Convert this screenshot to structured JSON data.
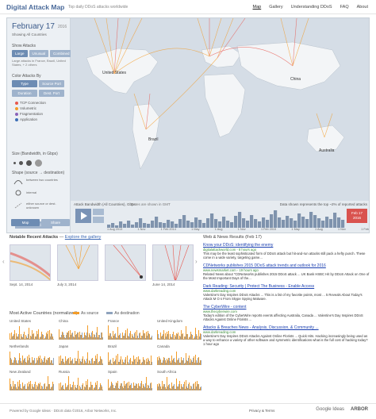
{
  "header": {
    "title": "Digital Attack Map",
    "subtitle": "Top daily DDoS attacks worldwide",
    "nav": [
      "Map",
      "Gallery",
      "Understanding DDoS",
      "FAQ",
      "About"
    ]
  },
  "sidepanel": {
    "date": "February 17",
    "year": "2016",
    "showing": "Showing All Countries",
    "show_attacks_label": "Show Attacks",
    "show_attacks_buttons": [
      "Large",
      "Unusual",
      "Combined"
    ],
    "show_attacks_note": "Large attacks in France, Brazil, United States, + 2 others",
    "color_label": "Color Attacks By",
    "color_buttons_row1": [
      "Type",
      "Source Port"
    ],
    "color_buttons_row2": [
      "Duration",
      "Dest. Port"
    ],
    "color_legend": [
      {
        "label": "TCP Connection",
        "color": "#e8574e"
      },
      {
        "label": "Volumetric",
        "color": "#f39c28"
      },
      {
        "label": "Fragmentation",
        "color": "#8a63b8"
      },
      {
        "label": "Application",
        "color": "#3d6fb6"
      }
    ],
    "size_label": "Size (Bandwidth, in Gbps)",
    "shape_label": "Shape (source → destination)",
    "shapes": [
      "between two countries",
      "internal",
      "either source or dest. unknown"
    ],
    "embed_button": "Get Embed Code",
    "map_button": "Map",
    "share_button": "Share"
  },
  "map": {
    "labels": [
      {
        "name": "United States"
      },
      {
        "name": "Brazil"
      },
      {
        "name": "China"
      },
      {
        "name": "Australia"
      }
    ]
  },
  "timeline": {
    "bandwidth_label": "Attack Bandwidth (All Countries), Gbps",
    "dates_note": "Dates are shown in GMT",
    "data_note": "Data shown represents the top ~2% of reported attacks",
    "badge_date": "Feb 17",
    "badge_year": "2016",
    "axis": [
      "1 Aug 2013",
      "1 Nov",
      "1 Feb 2014",
      "1 May",
      "1 Aug",
      "1 Nov",
      "1 Feb 2015",
      "1 May",
      "1 Aug",
      "1 Nov",
      "1 Feb"
    ],
    "spark": [
      4,
      6,
      3,
      8,
      5,
      9,
      4,
      7,
      12,
      6,
      5,
      9,
      14,
      7,
      6,
      10,
      8,
      5,
      11,
      16,
      9,
      7,
      13,
      10,
      6,
      12,
      18,
      11,
      8,
      14,
      9,
      7,
      15,
      20,
      12,
      9,
      16,
      11,
      8,
      13,
      10,
      17,
      22,
      13,
      10,
      15,
      12,
      9,
      18,
      14,
      11,
      20,
      16,
      12,
      9,
      14,
      11,
      19,
      13,
      10
    ]
  },
  "gallery": {
    "title": "Notable Recent Attacks",
    "link": "Explore the gallery",
    "thumbs": [
      {
        "caption": "Sept. 14, 2014"
      },
      {
        "caption": "July 3, 2014"
      },
      {
        "caption": ""
      },
      {
        "caption": "June 14, 2014"
      }
    ]
  },
  "countries": {
    "title": "Most Active Countries (normalized)",
    "legend_source": "As source",
    "legend_dest": "As destination",
    "source_color": "#f39c28",
    "dest_color": "#8fa3bd",
    "cells": [
      {
        "name": "United States"
      },
      {
        "name": "China"
      },
      {
        "name": "France"
      },
      {
        "name": "United Kingdom"
      },
      {
        "name": "Netherlands"
      },
      {
        "name": "Japan"
      },
      {
        "name": "Brazil"
      },
      {
        "name": "Canada"
      },
      {
        "name": "New Zealand"
      },
      {
        "name": "Russia"
      },
      {
        "name": "Spain"
      },
      {
        "name": "South Africa"
      }
    ]
  },
  "news": {
    "title": "Web & News Results (Feb 17)",
    "items": [
      {
        "title": "Know your DDoS: identifying the enemy",
        "src": "digitalattackworld.com - 8 hours ago",
        "desc": "This may be the least sophisticated form of DDoS attack but hit-and-run attacks still pack a hefty punch. These come in a wide variety, targeting game..."
      },
      {
        "title": "CDNetworks publishes 2015 DDoS attack trends and outlook for 2016",
        "src": "www.newsmarket.com - 19 hours ago",
        "desc": "Related News about \"CDNetworks publishes 2015 DDoS attack ... UK Bank HSBC Hit by DDoS Attack on One of the Most Important Days of the..."
      },
      {
        "title": "Dark Reading: Security | Protect The Business - Enable Access",
        "src": "www.darkreading.com",
        "desc": "Valentine's Day Inspires DDoS Attacks ... This is a list of my favorite points, most ... 5 Reveals About Today's Attack M O s From Skype Spying Malware."
      },
      {
        "title": "The CyberWire - content",
        "src": "www.thecyberwire.com",
        "desc": "Today's edition of the CyberWire reports events affecting Australia, Canada ... Valentine's Day Inspires DDoS Attacks Against Online Florists ..."
      },
      {
        "title": "Attacks & Breaches News - Analysis, Discussion, & Community ...",
        "src": "www.darkreading.com",
        "desc": "Valentine's Day Inspires DDoS Attacks Against Online Florists ... Quick Hits. Hacking increasingly being used as a way to enhance a variety of other software and symmetric identifications what is the full cost of hacking today? 1 hour ago"
      }
    ]
  },
  "footer": {
    "left": "Powered by Google Ideas · DDoS data ©2016, Arbor Networks, Inc.",
    "links": [
      "Privacy & Terms"
    ],
    "brand1": "Google Ideas",
    "brand2": "ARBOR"
  }
}
